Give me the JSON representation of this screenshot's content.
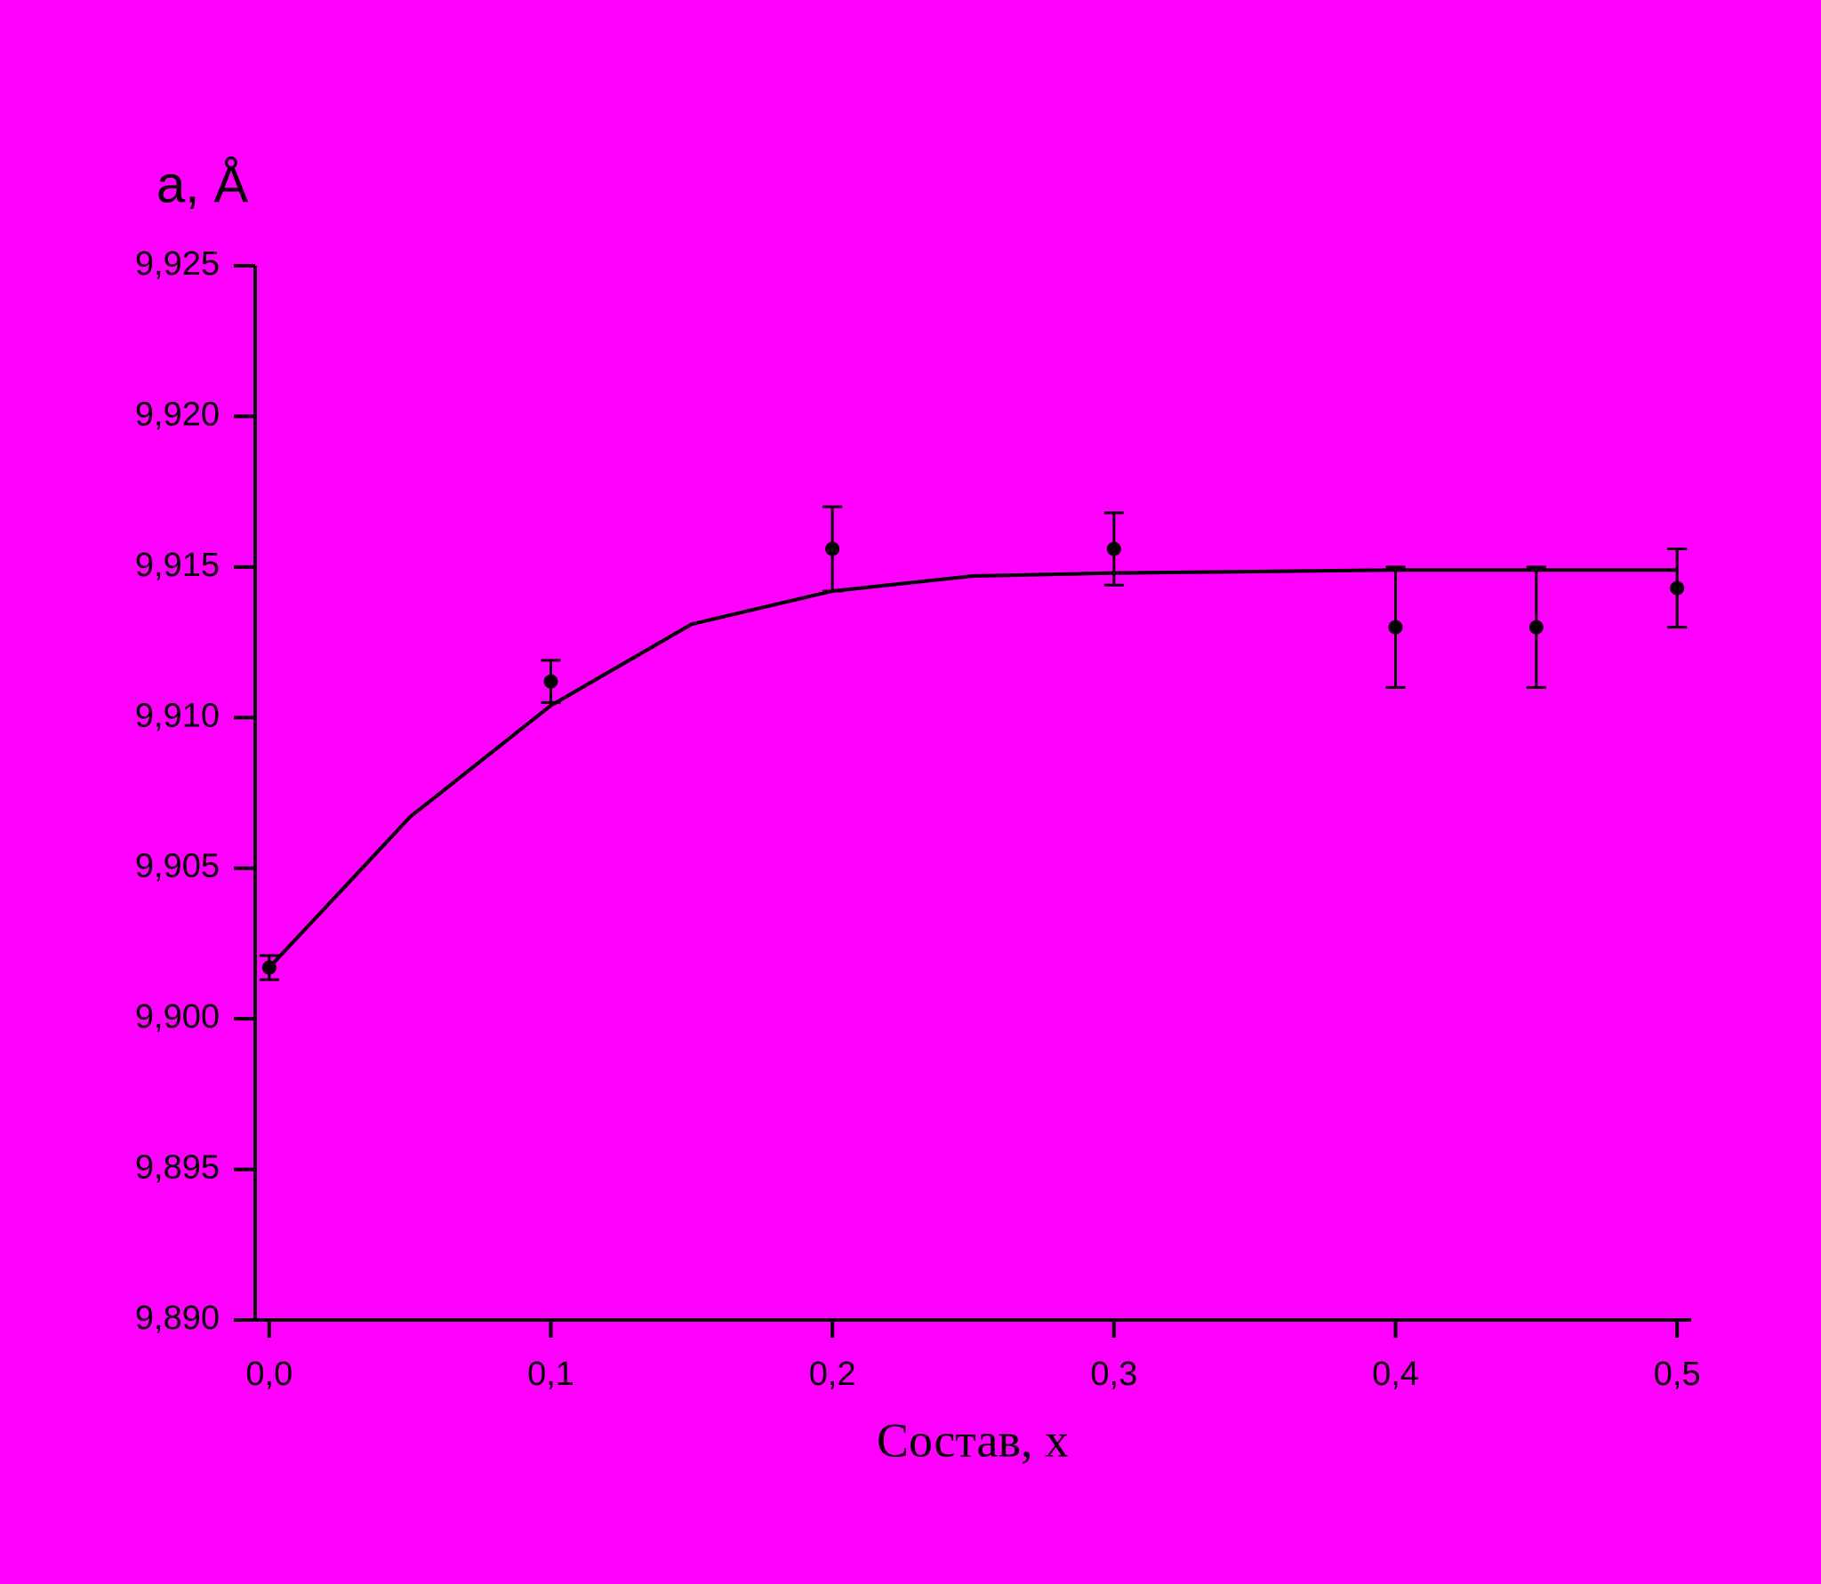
{
  "chart_data": {
    "type": "scatter",
    "x_label": "Состав, x",
    "y_label": "a, Å",
    "background": "#ff00ff",
    "xlim": [
      -0.005,
      0.505
    ],
    "xticks": [
      {
        "value": 0,
        "label": "0,0"
      },
      {
        "value": 0.1,
        "label": "0,1"
      },
      {
        "value": 0.2,
        "label": "0,2"
      },
      {
        "value": 0.3,
        "label": "0,3"
      },
      {
        "value": 0.4,
        "label": "0,4"
      },
      {
        "value": 0.5,
        "label": "0,5"
      }
    ],
    "ylim": [
      9.89,
      9.925
    ],
    "yticks": [
      {
        "value": 9.89,
        "label": "9,890"
      },
      {
        "value": 9.895,
        "label": "9,895"
      },
      {
        "value": 9.9,
        "label": "9,900"
      },
      {
        "value": 9.905,
        "label": "9,905"
      },
      {
        "value": 9.91,
        "label": "9,910"
      },
      {
        "value": 9.915,
        "label": "9,915"
      },
      {
        "value": 9.92,
        "label": "9,920"
      },
      {
        "value": 9.925,
        "label": "9,925"
      }
    ],
    "series": [
      {
        "type": "scatter",
        "color": "#000000",
        "x": [
          0,
          0.1,
          0.2,
          0.3,
          0.4,
          0.45,
          0.5
        ],
        "values": [
          9.9017,
          9.9112,
          9.9156,
          9.9156,
          9.913,
          9.913,
          9.9143
        ],
        "errors": [
          0.0004,
          0.0007,
          0.0014,
          0.0012,
          0.002,
          0.002,
          0.0013
        ]
      },
      {
        "type": "line",
        "color": "#000000",
        "x": [
          0,
          0.05,
          0.1,
          0.15,
          0.2,
          0.25,
          0.3,
          0.4,
          0.5
        ],
        "values": [
          9.9017,
          9.9067,
          9.9104,
          9.9131,
          9.9142,
          9.9147,
          9.9148,
          9.9149,
          9.9149
        ]
      }
    ]
  }
}
